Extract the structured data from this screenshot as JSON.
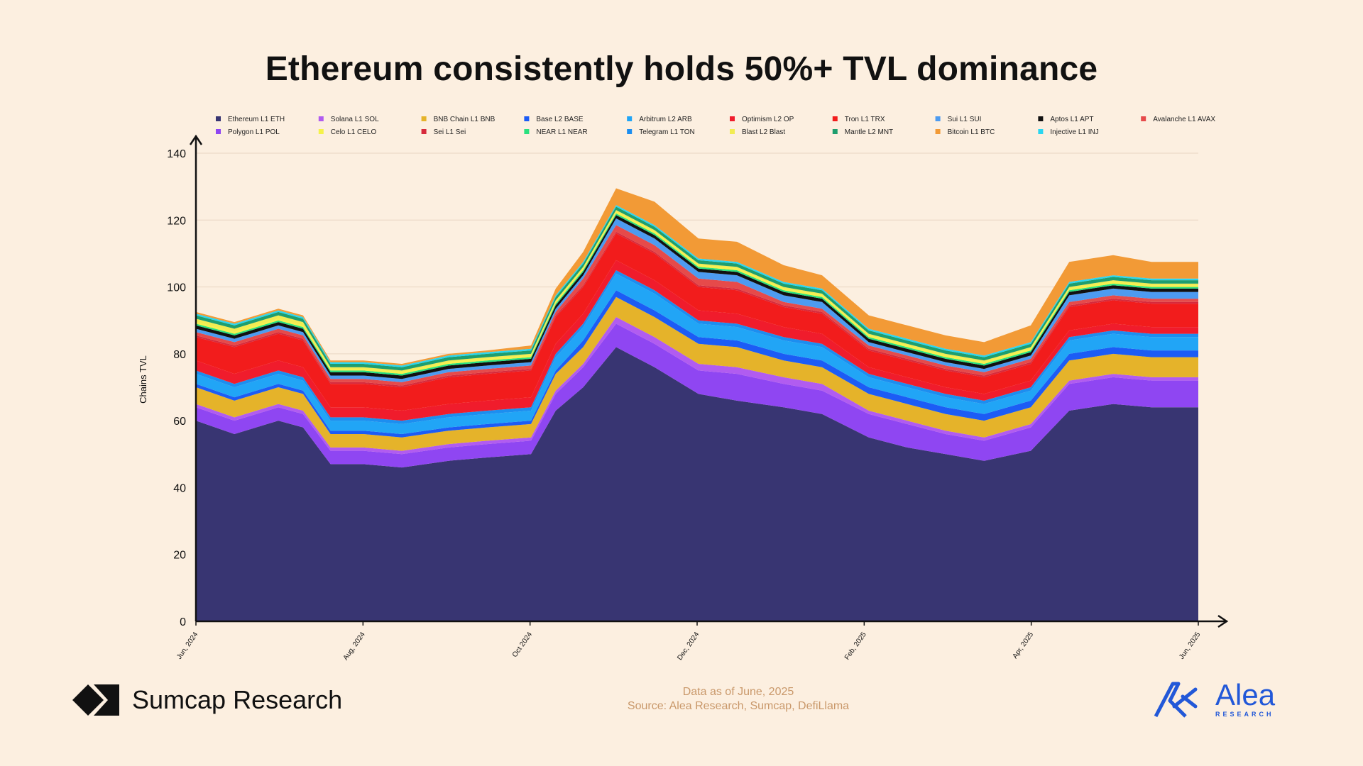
{
  "title": "Ethereum consistently holds 50%+ TVL dominance",
  "footer": {
    "line1": "Data as of June, 2025",
    "line2": "Source: Alea Research, Sumcap, DefiLlama"
  },
  "brand_left": {
    "name": "Sumcap Research",
    "logo_icon": "sumcap-logo-icon"
  },
  "brand_right": {
    "name": "Alea",
    "sub": "RESEARCH",
    "logo_icon": "alea-logo-icon"
  },
  "colors": {
    "background": "#fcefe0",
    "grid": "#e8d6c2",
    "footer_text": "#c9986a",
    "brand_blue": "#2258d8"
  },
  "chart_data": {
    "type": "area",
    "stacked": true,
    "ylabel": "Chains TVL",
    "xlabel": "",
    "ylim": [
      0,
      140
    ],
    "yticks": [
      0,
      20,
      40,
      60,
      80,
      100,
      120,
      140
    ],
    "grid": "horizontal",
    "legend_position": "top",
    "x_ticks": [
      "Jun, 2024",
      "Aug, 2024",
      "Oct 2024",
      "Dec, 2024",
      "Feb, 2025",
      "Apr, 2025",
      "Jun, 2025"
    ],
    "x": [
      "2024-06-01",
      "2024-06-15",
      "2024-07-01",
      "2024-07-10",
      "2024-07-20",
      "2024-08-01",
      "2024-08-15",
      "2024-09-01",
      "2024-09-15",
      "2024-10-01",
      "2024-10-10",
      "2024-10-20",
      "2024-11-01",
      "2024-11-15",
      "2024-12-01",
      "2024-12-15",
      "2025-01-01",
      "2025-01-15",
      "2025-02-01",
      "2025-02-15",
      "2025-03-01",
      "2025-03-15",
      "2025-04-01",
      "2025-04-15",
      "2025-05-01",
      "2025-05-15",
      "2025-06-01"
    ],
    "series": [
      {
        "name": "Ethereum L1 ETH",
        "color": "#383572",
        "values": [
          60,
          56,
          60,
          58,
          47,
          47,
          46,
          48,
          49,
          50,
          63,
          70,
          82,
          76,
          68,
          66,
          64,
          62,
          55,
          52,
          50,
          48,
          51,
          63,
          65,
          64,
          64
        ]
      },
      {
        "name": "Polygon L1 POL",
        "color": "#8f46f2",
        "values": [
          4,
          4,
          4,
          4,
          4,
          4,
          4,
          4,
          4,
          4,
          5,
          6,
          7,
          7,
          7,
          8,
          7,
          7,
          7,
          7,
          6,
          6,
          7,
          8,
          8,
          8,
          8
        ]
      },
      {
        "name": "Solana L1 SOL",
        "color": "#b15cf0",
        "values": [
          1,
          1,
          1,
          1,
          1,
          1,
          1,
          1,
          1,
          1,
          1,
          1,
          2,
          2,
          2,
          2,
          2,
          2,
          1,
          1,
          1,
          1,
          1,
          1,
          1,
          1,
          1
        ]
      },
      {
        "name": "BNB Chain L1 BNB",
        "color": "#e5b32a",
        "values": [
          5,
          5,
          5,
          5,
          4,
          4,
          4,
          4,
          4,
          4,
          5,
          5,
          6,
          6,
          6,
          6,
          5,
          5,
          5,
          5,
          5,
          5,
          5,
          6,
          6,
          6,
          6
        ]
      },
      {
        "name": "Base L2 BASE",
        "color": "#1c5cf5",
        "values": [
          1,
          1,
          1,
          1,
          1,
          1,
          1,
          1,
          1,
          1,
          1,
          2,
          2,
          2,
          2,
          2,
          2,
          2,
          2,
          2,
          2,
          2,
          2,
          2,
          2,
          2,
          2
        ]
      },
      {
        "name": "Arbitrum L2 ARB",
        "color": "#21a5f6",
        "values": [
          3,
          3,
          3,
          3,
          3,
          3,
          3,
          3,
          3,
          3,
          4,
          4,
          5,
          5,
          4,
          4,
          4,
          4,
          3,
          3,
          3,
          3,
          3,
          4,
          4,
          4,
          4
        ]
      },
      {
        "name": "Telegram L1 TON",
        "color": "#1c8ef0",
        "values": [
          1,
          1,
          1,
          1,
          1,
          1,
          1,
          1,
          1,
          1,
          1,
          1,
          1,
          1,
          1,
          1,
          1,
          1,
          1,
          1,
          1,
          1,
          1,
          1,
          1,
          1,
          1
        ]
      },
      {
        "name": "Optimism L2 OP",
        "color": "#f01c2c",
        "values": [
          3,
          3,
          3,
          3,
          3,
          3,
          3,
          3,
          3,
          3,
          3,
          3,
          3,
          3,
          3,
          3,
          3,
          3,
          2,
          2,
          2,
          2,
          2,
          2,
          2,
          2,
          2
        ]
      },
      {
        "name": "Tron L1 TRX",
        "color": "#f21c1c",
        "values": [
          7,
          8,
          8,
          8,
          7,
          7,
          7,
          8,
          8,
          8,
          8,
          8,
          8,
          8,
          7,
          7,
          6,
          6,
          5,
          5,
          5,
          5,
          5,
          7,
          7,
          7,
          7
        ]
      },
      {
        "name": "Sei L1 Sei",
        "color": "#d62a3c",
        "values": [
          0.5,
          0.5,
          0.5,
          0.5,
          0.5,
          0.5,
          0.5,
          0.5,
          0.5,
          0.5,
          0.5,
          0.5,
          0.5,
          0.5,
          0.5,
          0.5,
          0.5,
          0.5,
          0.5,
          0.5,
          0.5,
          0.5,
          0.5,
          0.5,
          0.5,
          0.5,
          0.5
        ]
      },
      {
        "name": "Avalanche L1 AVAX",
        "color": "#e64a4a",
        "values": [
          1,
          1,
          1,
          1,
          1,
          1,
          1,
          1,
          1,
          1,
          1,
          2,
          2,
          2,
          2,
          2,
          1,
          1,
          1,
          1,
          1,
          1,
          1,
          1,
          1,
          1,
          1
        ]
      },
      {
        "name": "Sui L1 SUI",
        "color": "#4d9bf0",
        "values": [
          1,
          1,
          1,
          1,
          1,
          1,
          1,
          1,
          1,
          1,
          1,
          1,
          2,
          2,
          2,
          2,
          2,
          2,
          1,
          1,
          1,
          1,
          1,
          2,
          2,
          2,
          2
        ]
      },
      {
        "name": "Aptos L1 APT",
        "color": "#111111",
        "values": [
          1,
          1,
          1,
          1,
          1,
          1,
          1,
          1,
          1,
          1,
          1,
          1,
          1,
          1,
          1,
          1,
          1,
          1,
          1,
          1,
          1,
          1,
          1,
          1,
          1,
          1,
          1
        ]
      },
      {
        "name": "NEAR L1 NEAR",
        "color": "#2ae07e",
        "values": [
          0.5,
          0.5,
          0.5,
          0.5,
          0.5,
          0.5,
          0.5,
          0.5,
          0.5,
          0.5,
          0.5,
          0.5,
          0.5,
          0.5,
          0.5,
          0.5,
          0.5,
          0.5,
          0.5,
          0.5,
          0.5,
          0.5,
          0.5,
          0.5,
          0.5,
          0.5,
          0.5
        ]
      },
      {
        "name": "Celo L1 CELO",
        "color": "#f5f24a",
        "values": [
          0.5,
          0.5,
          0.5,
          0.5,
          0.5,
          0.5,
          0.5,
          0.5,
          0.5,
          0.5,
          0.5,
          0.5,
          0.5,
          0.5,
          0.5,
          0.5,
          0.5,
          0.5,
          0.5,
          0.5,
          0.5,
          0.5,
          0.5,
          0.5,
          0.5,
          0.5,
          0.5
        ]
      },
      {
        "name": "Blast L2 Blast",
        "color": "#f2ec52",
        "values": [
          1,
          1,
          1,
          1,
          0.5,
          0.5,
          0.5,
          0.5,
          0.5,
          0.5,
          0.5,
          0.5,
          0.5,
          0.5,
          0.5,
          0.5,
          0.5,
          0.5,
          0.5,
          0.5,
          0.5,
          0.5,
          0.5,
          0.5,
          0.5,
          0.5,
          0.5
        ]
      },
      {
        "name": "Mantle L2 MNT",
        "color": "#1e9e6e",
        "values": [
          1,
          1,
          1,
          1,
          1,
          1,
          1,
          1,
          1,
          1,
          1,
          1,
          1,
          1,
          1,
          1,
          1,
          1,
          1,
          1,
          1,
          1,
          1,
          1,
          1,
          1,
          1
        ]
      },
      {
        "name": "Injective L1 INJ",
        "color": "#2ad6f0",
        "values": [
          0.5,
          0.5,
          0.5,
          0.5,
          0.5,
          0.5,
          0.5,
          0.5,
          0.5,
          0.5,
          0.5,
          0.5,
          0.5,
          0.5,
          0.5,
          0.5,
          0.5,
          0.5,
          0.5,
          0.5,
          0.5,
          0.5,
          0.5,
          0.5,
          0.5,
          0.5,
          0.5
        ]
      },
      {
        "name": "Bitcoin L1 BTC",
        "color": "#f29a36",
        "values": [
          0.5,
          0.5,
          0.5,
          0.5,
          0.5,
          0.5,
          0.5,
          0.5,
          0.5,
          1,
          2,
          3,
          5,
          7,
          6,
          6,
          5,
          4,
          4,
          4,
          4,
          4,
          5,
          6,
          6,
          5,
          5
        ]
      }
    ],
    "legend": [
      {
        "name": "Ethereum L1 ETH",
        "color": "#383572"
      },
      {
        "name": "Solana L1 SOL",
        "color": "#b15cf0"
      },
      {
        "name": "BNB Chain L1 BNB",
        "color": "#e5b32a"
      },
      {
        "name": "Base L2 BASE",
        "color": "#1c5cf5"
      },
      {
        "name": "Arbitrum L2 ARB",
        "color": "#21a5f6"
      },
      {
        "name": "Optimism L2 OP",
        "color": "#f01c2c"
      },
      {
        "name": "Tron L1 TRX",
        "color": "#f21c1c"
      },
      {
        "name": "Sui L1 SUI",
        "color": "#4d9bf0"
      },
      {
        "name": "Aptos L1 APT",
        "color": "#111111"
      },
      {
        "name": "Avalanche L1 AVAX",
        "color": "#e64a4a"
      },
      {
        "name": "Polygon L1 POL",
        "color": "#8f46f2"
      },
      {
        "name": "Celo L1 CELO",
        "color": "#f5f24a"
      },
      {
        "name": "Sei L1 Sei",
        "color": "#d62a3c"
      },
      {
        "name": "NEAR L1 NEAR",
        "color": "#2ae07e"
      },
      {
        "name": "Telegram L1 TON",
        "color": "#1c8ef0"
      },
      {
        "name": "Blast L2 Blast",
        "color": "#f2ec52"
      },
      {
        "name": "Mantle L2 MNT",
        "color": "#1e9e6e"
      },
      {
        "name": "Bitcoin L1 BTC",
        "color": "#f29a36"
      },
      {
        "name": "Injective L1 INJ",
        "color": "#2ad6f0"
      }
    ]
  }
}
